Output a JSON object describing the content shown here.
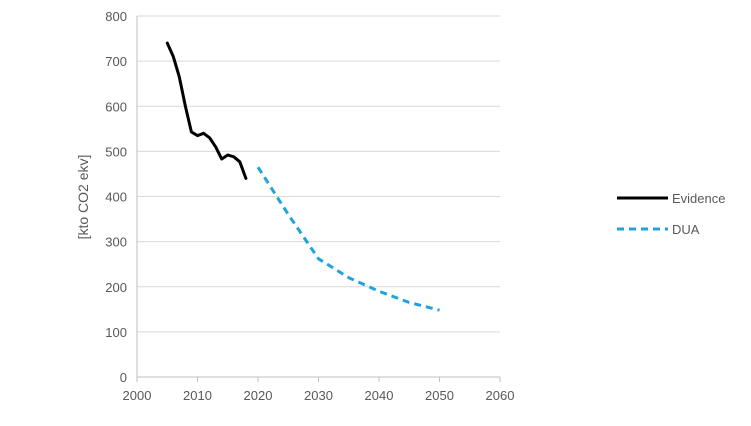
{
  "chart_data": {
    "type": "line",
    "title": "",
    "xlabel": "",
    "ylabel": "[kto CO2 ekv]",
    "xlim": [
      2000,
      2060
    ],
    "ylim": [
      0,
      800
    ],
    "xticks": [
      2000,
      2010,
      2020,
      2030,
      2040,
      2050,
      2060
    ],
    "yticks": [
      0,
      100,
      200,
      300,
      400,
      500,
      600,
      700,
      800
    ],
    "grid": "horizontal",
    "legend_position": "right",
    "series": [
      {
        "name": "Evidence",
        "color": "#000000",
        "style": "solid",
        "x": [
          2005,
          2006,
          2007,
          2008,
          2009,
          2010,
          2011,
          2012,
          2013,
          2014,
          2015,
          2016,
          2017,
          2018
        ],
        "y": [
          740,
          710,
          665,
          600,
          543,
          535,
          540,
          530,
          510,
          483,
          492,
          488,
          477,
          440
        ]
      },
      {
        "name": "DUA",
        "color": "#1fa3dc",
        "style": "dashed",
        "x": [
          2020,
          2025,
          2030,
          2035,
          2040,
          2045,
          2050
        ],
        "y": [
          465,
          360,
          262,
          220,
          190,
          165,
          148
        ]
      }
    ]
  }
}
